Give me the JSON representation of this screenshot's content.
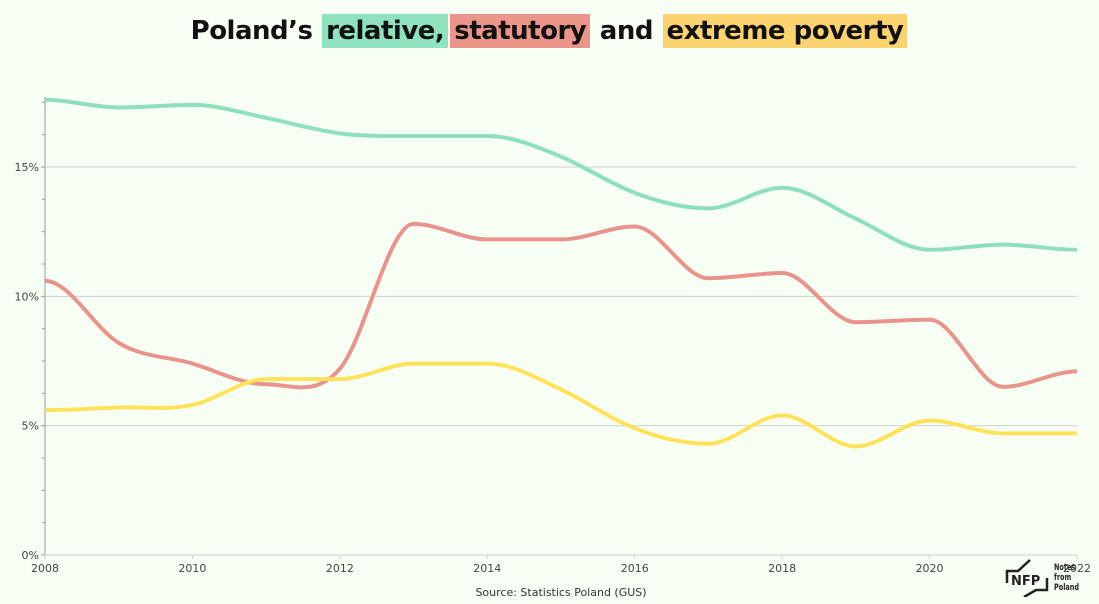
{
  "title": {
    "prefix": "Poland’s",
    "relative": "relative,",
    "statutory": "statutory",
    "and": "and",
    "extreme": "extreme poverty"
  },
  "source": "Source: Statistics Poland (GUS)",
  "logo": {
    "mark": "NFP",
    "line1": "Notes from",
    "line2": "Poland"
  },
  "colors": {
    "relative": "#8ee0bc",
    "statutory": "#e8948a",
    "extreme": "#ffe25a",
    "grid": "#cfcfcf",
    "axis": "#999999"
  },
  "chart_data": {
    "type": "line",
    "title": "Poland’s relative, statutory and extreme poverty",
    "xlabel": "",
    "ylabel": "",
    "x": [
      2008,
      2009,
      2010,
      2011,
      2012,
      2013,
      2014,
      2015,
      2016,
      2017,
      2018,
      2019,
      2020,
      2021,
      2022
    ],
    "xlim": [
      2008,
      2022
    ],
    "ylim": [
      0,
      18
    ],
    "x_ticks": [
      "2008",
      "2010",
      "2012",
      "2014",
      "2016",
      "2018",
      "2020",
      "2022"
    ],
    "x_tick_values": [
      2008,
      2010,
      2012,
      2014,
      2016,
      2018,
      2020,
      2022
    ],
    "y_ticks": [
      "0%",
      "5%",
      "10%",
      "15%"
    ],
    "y_tick_values": [
      0,
      5,
      10,
      15
    ],
    "y_minor_step": 1.25,
    "grid": true,
    "legend": "in-title",
    "series": [
      {
        "name": "relative",
        "color_key": "relative",
        "values": [
          17.6,
          17.3,
          17.4,
          16.9,
          16.3,
          16.2,
          16.2,
          15.4,
          14.0,
          13.4,
          14.2,
          13.0,
          11.8,
          12.0,
          11.8
        ]
      },
      {
        "name": "statutory",
        "color_key": "statutory",
        "values": [
          10.6,
          8.2,
          7.4,
          6.6,
          7.2,
          12.8,
          12.2,
          12.2,
          12.7,
          10.7,
          10.9,
          9.0,
          9.1,
          6.5,
          7.1
        ]
      },
      {
        "name": "extreme",
        "color_key": "extreme",
        "values": [
          5.6,
          5.7,
          5.8,
          6.8,
          6.8,
          7.4,
          7.4,
          6.4,
          4.9,
          4.3,
          5.4,
          4.2,
          5.2,
          4.7,
          4.7
        ]
      }
    ]
  }
}
